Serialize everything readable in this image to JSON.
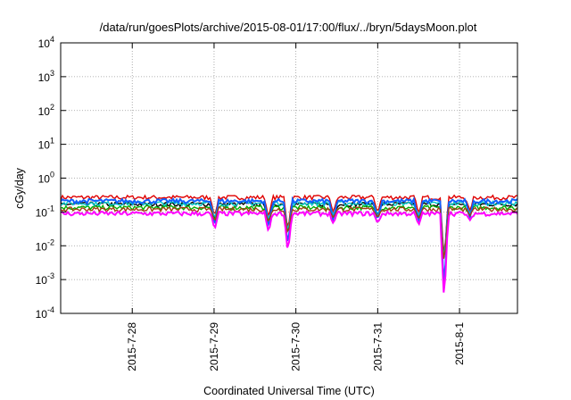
{
  "chart_data": {
    "type": "line",
    "title": "/data/run/goesPlots/archive/2015-08-01/17:00/flux/../bryn/5daysMoon.plot",
    "xlabel": "Coordinated Universal Time (UTC)",
    "ylabel": "cGy/day",
    "yscale": "log",
    "ylim": [
      0.0001,
      10000
    ],
    "y_ticks": [
      {
        "value": 0.0001,
        "base": "10",
        "exp": "-4"
      },
      {
        "value": 0.001,
        "base": "10",
        "exp": "-3"
      },
      {
        "value": 0.01,
        "base": "10",
        "exp": "-2"
      },
      {
        "value": 0.1,
        "base": "10",
        "exp": "-1"
      },
      {
        "value": 1,
        "base": "10",
        "exp": "0"
      },
      {
        "value": 10,
        "base": "10",
        "exp": "1"
      },
      {
        "value": 100,
        "base": "10",
        "exp": "2"
      },
      {
        "value": 1000,
        "base": "10",
        "exp": "3"
      },
      {
        "value": 10000,
        "base": "10",
        "exp": "4"
      }
    ],
    "xlim": [
      "2015-07-27T03:00",
      "2015-08-01T17:00"
    ],
    "x_ticks": [
      {
        "value": "2015-07-28T00:00",
        "label": "2015-7-28"
      },
      {
        "value": "2015-07-29T00:00",
        "label": "2015-7-29"
      },
      {
        "value": "2015-07-30T00:00",
        "label": "2015-7-30"
      },
      {
        "value": "2015-07-31T00:00",
        "label": "2015-7-31"
      },
      {
        "value": "2015-08-01T00:00",
        "label": "2015-8-1"
      }
    ],
    "grid": true,
    "series_colors": [
      "#e00000",
      "#000000",
      "#00b000",
      "#00c8c8",
      "#1060ff",
      "#a04010",
      "#ff00ff"
    ],
    "series_levels": [
      0.27,
      0.17,
      0.135,
      0.18,
      0.21,
      0.12,
      0.09
    ],
    "dips": [
      {
        "time": "2015-07-29T00:10",
        "min": 0.03
      },
      {
        "time": "2015-07-29T16:00",
        "min": 0.025
      },
      {
        "time": "2015-07-29T21:40",
        "min": 0.006
      },
      {
        "time": "2015-07-30T11:00",
        "min": 0.045
      },
      {
        "time": "2015-07-31T00:00",
        "min": 0.045
      },
      {
        "time": "2015-07-31T12:00",
        "min": 0.04
      },
      {
        "time": "2015-07-31T19:30",
        "min": 0.0002
      },
      {
        "time": "2015-08-01T03:00",
        "min": 0.055
      }
    ]
  }
}
